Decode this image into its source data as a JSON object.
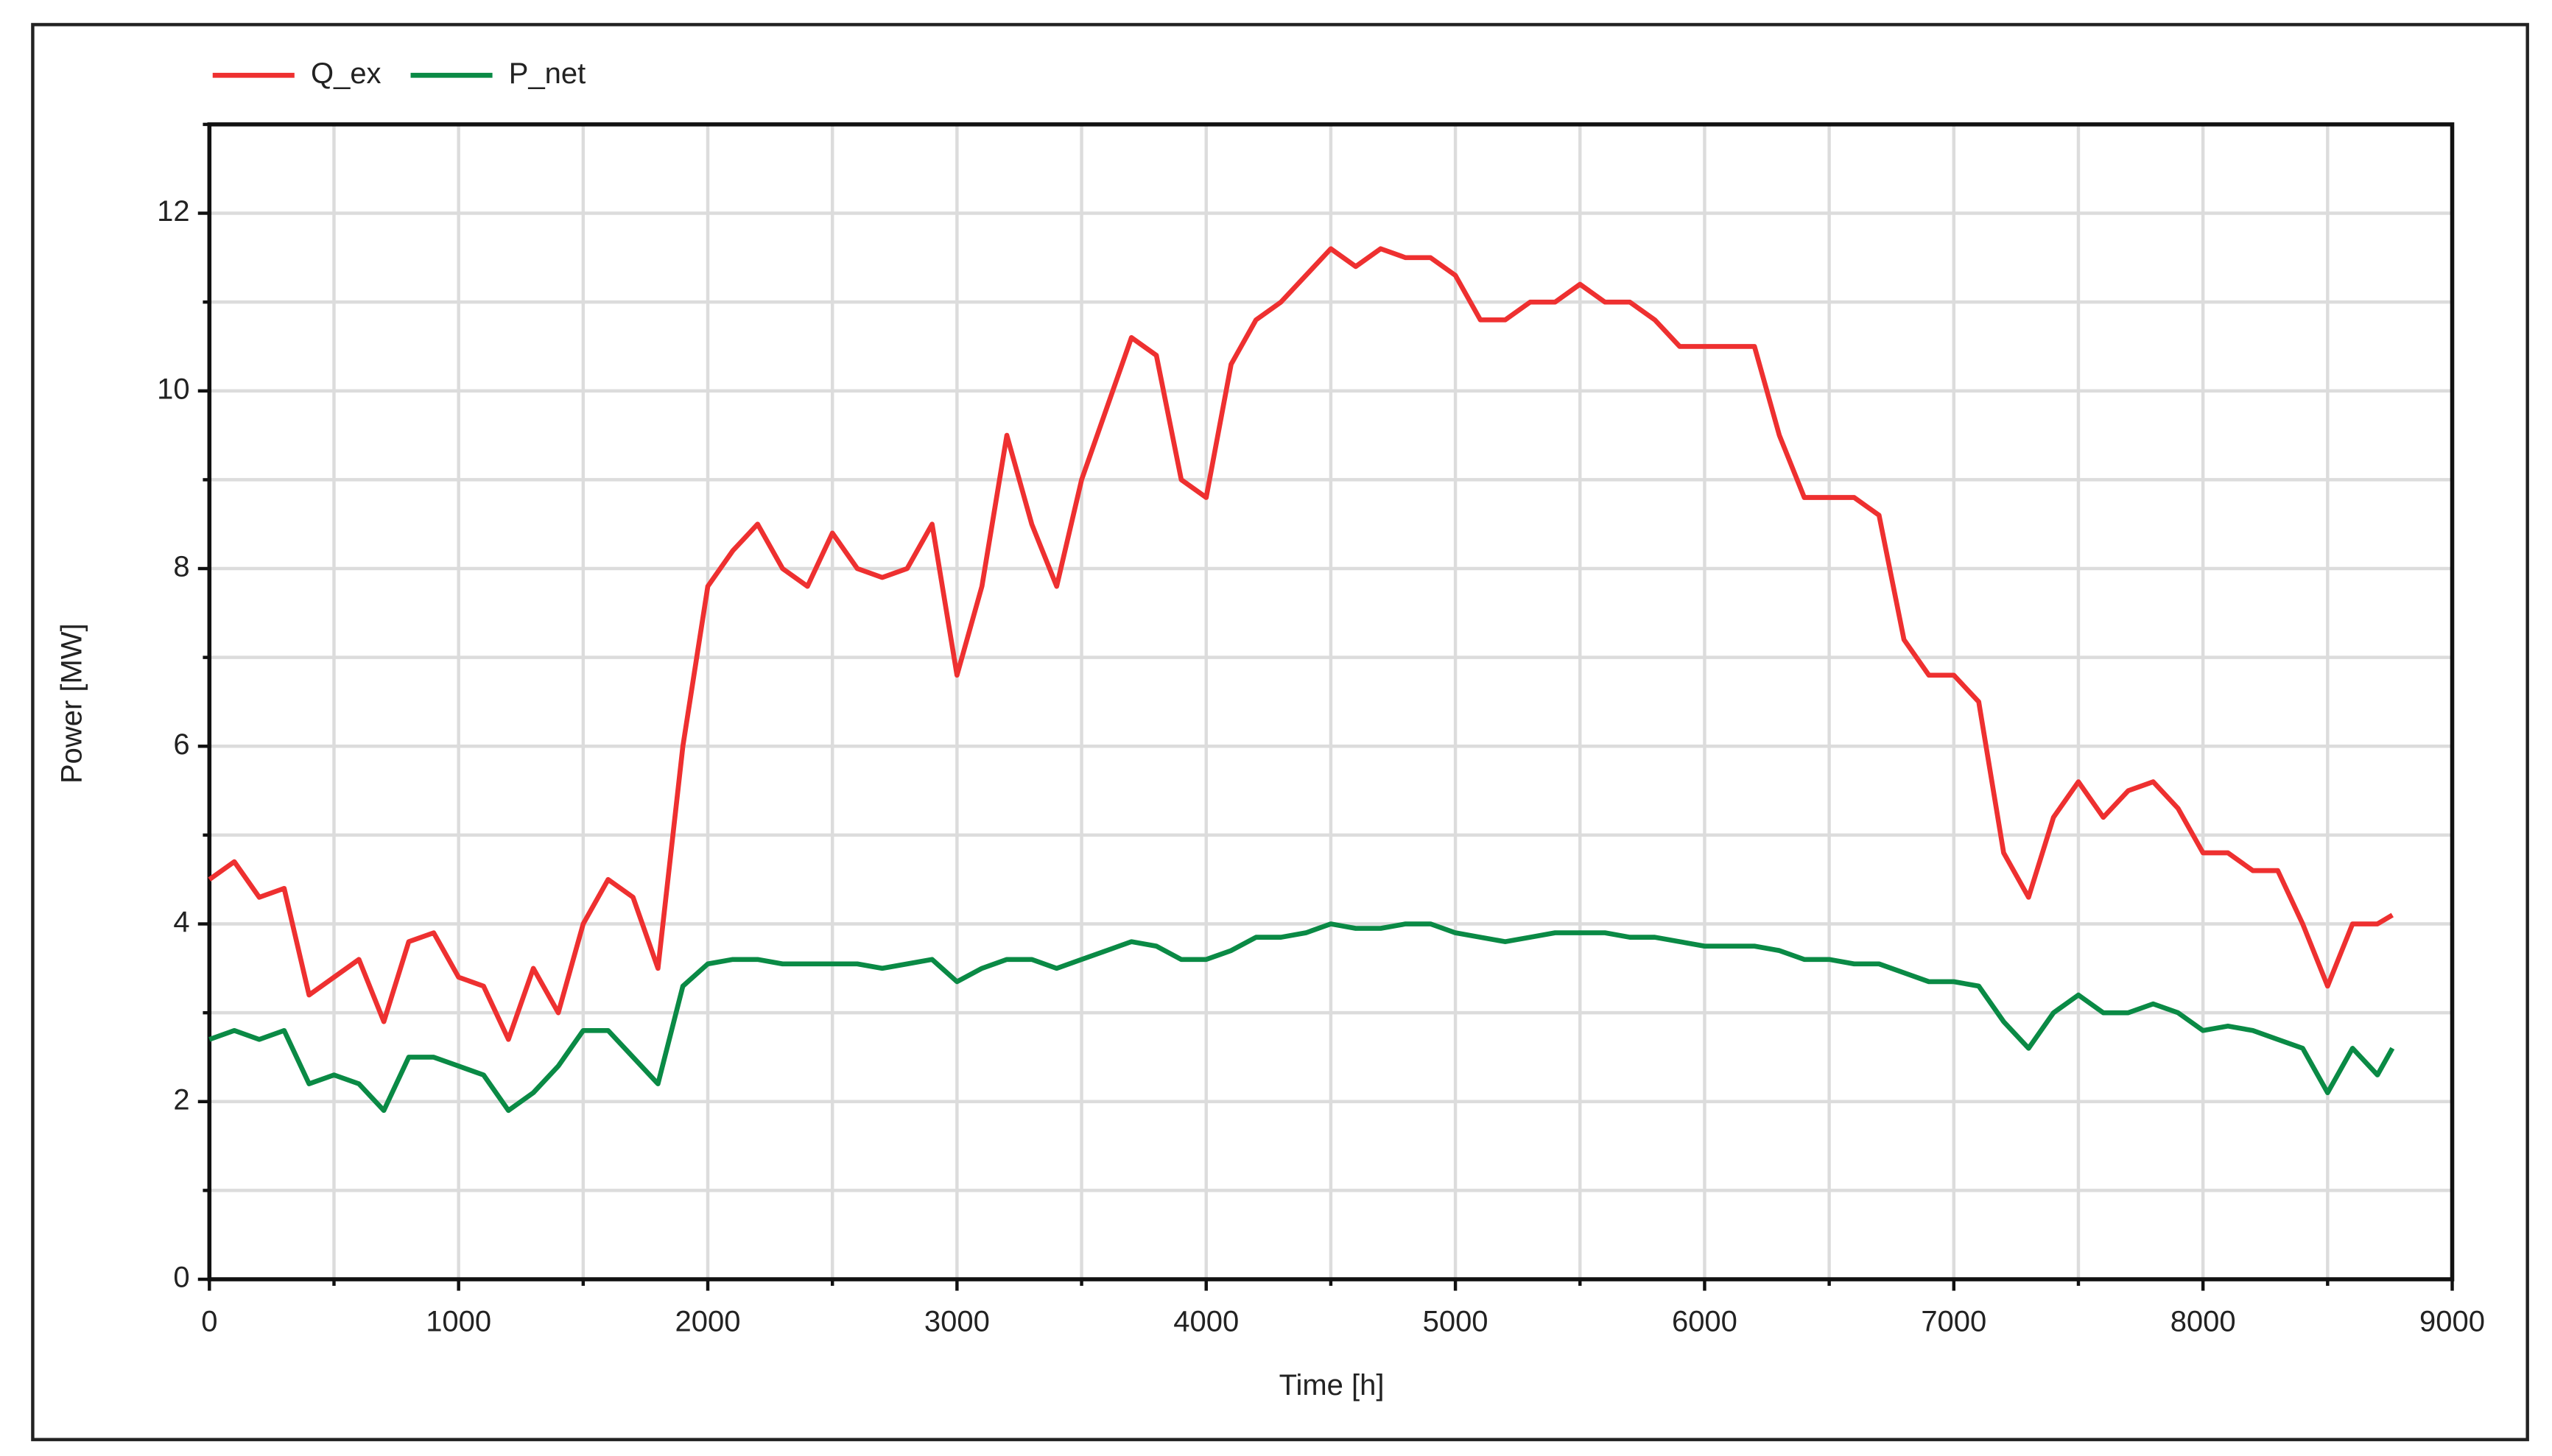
{
  "chart_data": {
    "type": "line",
    "x_label": "Time [h]",
    "y_label": "Power [MW]",
    "x": [
      0,
      100,
      200,
      300,
      400,
      500,
      600,
      700,
      800,
      900,
      1000,
      1100,
      1200,
      1300,
      1400,
      1500,
      1600,
      1700,
      1800,
      1900,
      2000,
      2100,
      2200,
      2300,
      2400,
      2500,
      2600,
      2700,
      2800,
      2900,
      3000,
      3100,
      3200,
      3300,
      3400,
      3500,
      3600,
      3700,
      3800,
      3900,
      4000,
      4100,
      4200,
      4300,
      4400,
      4500,
      4600,
      4700,
      4800,
      4900,
      5000,
      5100,
      5200,
      5300,
      5400,
      5500,
      5600,
      5700,
      5800,
      5900,
      6000,
      6100,
      6200,
      6300,
      6400,
      6500,
      6600,
      6700,
      6800,
      6900,
      7000,
      7100,
      7200,
      7300,
      7400,
      7500,
      7600,
      7700,
      7800,
      7900,
      8000,
      8100,
      8200,
      8300,
      8400,
      8500,
      8600,
      8700,
      8760
    ],
    "series": [
      {
        "name": "Q_ex",
        "color": "#ee3030",
        "values": [
          4.5,
          4.7,
          4.3,
          4.4,
          3.2,
          3.4,
          3.6,
          2.9,
          3.8,
          3.9,
          3.4,
          3.3,
          2.7,
          3.5,
          3.0,
          4.0,
          4.5,
          4.3,
          3.5,
          6.0,
          7.8,
          8.2,
          8.5,
          8.0,
          7.8,
          8.4,
          8.0,
          7.9,
          8.0,
          8.5,
          6.8,
          7.8,
          9.5,
          8.5,
          7.8,
          9.0,
          9.8,
          10.6,
          10.4,
          9.0,
          8.8,
          10.3,
          10.8,
          11.0,
          11.3,
          11.6,
          11.4,
          11.6,
          11.5,
          11.5,
          11.3,
          10.8,
          10.8,
          11.0,
          11.0,
          11.2,
          11.0,
          11.0,
          10.8,
          10.5,
          10.5,
          10.5,
          10.5,
          9.5,
          8.8,
          8.8,
          8.8,
          8.6,
          7.2,
          6.8,
          6.8,
          6.5,
          4.8,
          4.3,
          5.2,
          5.6,
          5.2,
          5.5,
          5.6,
          5.3,
          4.8,
          4.8,
          4.6,
          4.6,
          4.0,
          3.3,
          4.0,
          4.0,
          4.1
        ]
      },
      {
        "name": "P_net",
        "color": "#0a8a45",
        "values": [
          2.7,
          2.8,
          2.7,
          2.8,
          2.2,
          2.3,
          2.2,
          1.9,
          2.5,
          2.5,
          2.4,
          2.3,
          1.9,
          2.1,
          2.4,
          2.8,
          2.8,
          2.5,
          2.2,
          3.3,
          3.55,
          3.6,
          3.6,
          3.55,
          3.55,
          3.55,
          3.55,
          3.5,
          3.55,
          3.6,
          3.35,
          3.5,
          3.6,
          3.6,
          3.5,
          3.6,
          3.7,
          3.8,
          3.75,
          3.6,
          3.6,
          3.7,
          3.85,
          3.85,
          3.9,
          4.0,
          3.95,
          3.95,
          4.0,
          4.0,
          3.9,
          3.85,
          3.8,
          3.85,
          3.9,
          3.9,
          3.9,
          3.85,
          3.85,
          3.8,
          3.75,
          3.75,
          3.75,
          3.7,
          3.6,
          3.6,
          3.55,
          3.55,
          3.45,
          3.35,
          3.35,
          3.3,
          2.9,
          2.6,
          3.0,
          3.2,
          3.0,
          3.0,
          3.1,
          3.0,
          2.8,
          2.85,
          2.8,
          2.7,
          2.6,
          2.1,
          2.6,
          2.3,
          2.6
        ]
      }
    ],
    "xlim": [
      0,
      9000
    ],
    "xticks": [
      0,
      1000,
      2000,
      3000,
      4000,
      5000,
      6000,
      7000,
      8000,
      9000
    ],
    "x_minor_ticks": [
      500,
      1500,
      2500,
      3500,
      4500,
      5500,
      6500,
      7500,
      8500
    ],
    "ylim": [
      0,
      13
    ],
    "yticks": [
      0,
      2,
      4,
      6,
      8,
      10,
      12
    ],
    "y_minor_ticks": [
      1,
      3,
      5,
      7,
      9,
      11,
      13
    ],
    "grid": true,
    "legend": "top-left"
  }
}
